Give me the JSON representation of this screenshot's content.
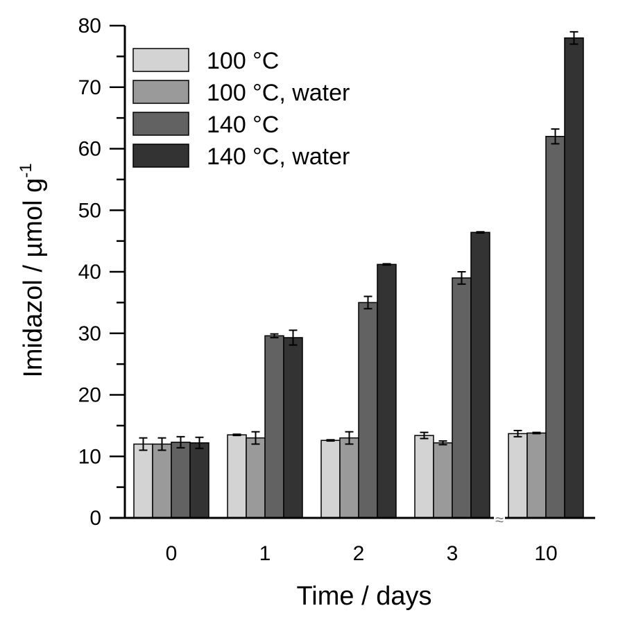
{
  "chart_data": {
    "type": "bar",
    "xlabel": "Time / days",
    "ylabel_main": "Imidazol / µmol g",
    "ylabel_sup": "-1",
    "categories": [
      "0",
      "1",
      "2",
      "3",
      "10"
    ],
    "ylim": [
      0,
      80
    ],
    "yticks": [
      "0",
      "10",
      "20",
      "30",
      "40",
      "50",
      "60",
      "70",
      "80"
    ],
    "axis_break": "≈",
    "legend_position": "top-left",
    "series": [
      {
        "name": "100 °C",
        "color": "#d3d3d3",
        "values": [
          12,
          13.5,
          12.6,
          13.4,
          13.7
        ],
        "errors": [
          1.0,
          0.1,
          0.1,
          0.5,
          0.5
        ]
      },
      {
        "name": "100 °C, water",
        "color": "#9a9a9a",
        "values": [
          12,
          13,
          13,
          12.2,
          13.8
        ],
        "errors": [
          1.0,
          1.0,
          1.0,
          0.3,
          0.1
        ]
      },
      {
        "name": "140 °C",
        "color": "#626262",
        "values": [
          12.3,
          29.6,
          35,
          39,
          62
        ],
        "errors": [
          0.9,
          0.3,
          1.0,
          1.0,
          1.2
        ]
      },
      {
        "name": "140 °C, water",
        "color": "#333333",
        "values": [
          12.2,
          29.3,
          41.2,
          46.4,
          78
        ],
        "errors": [
          0.9,
          1.2,
          0.1,
          0.1,
          1.0
        ]
      }
    ]
  }
}
